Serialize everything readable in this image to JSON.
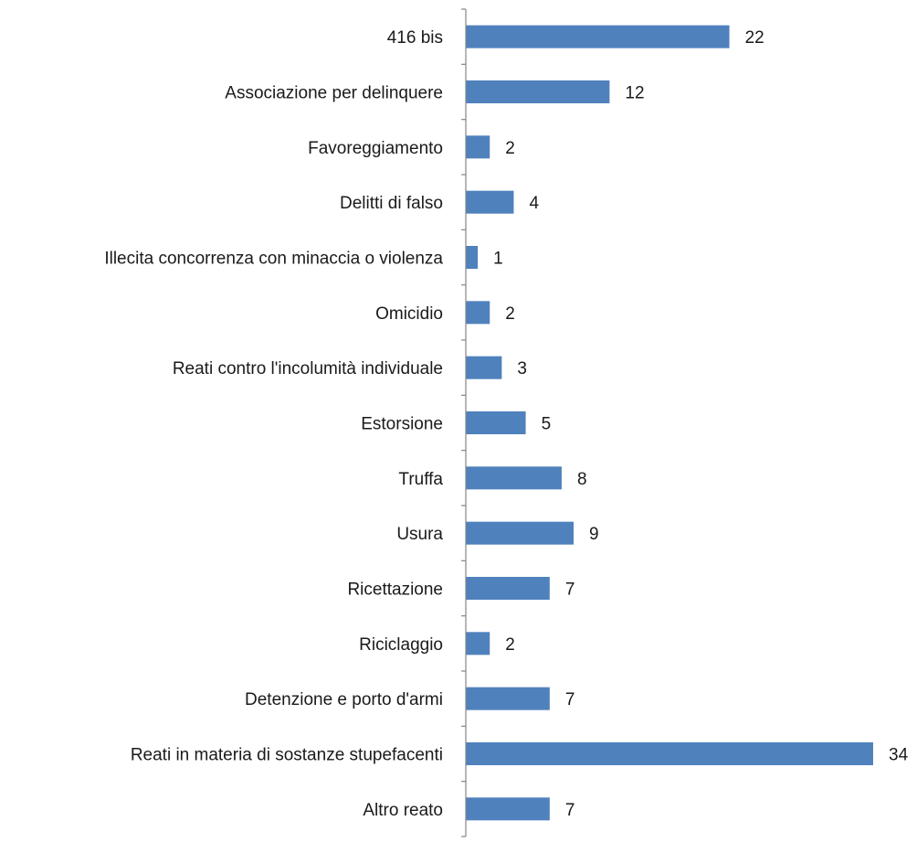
{
  "chart_data": {
    "type": "bar",
    "orientation": "horizontal",
    "categories": [
      "416 bis",
      "Associazione per delinquere",
      "Favoreggiamento",
      "Delitti di falso",
      "Illecita concorrenza con minaccia o violenza",
      "Omicidio",
      "Reati contro l'incolumità individuale",
      "Estorsione",
      "Truffa",
      "Usura",
      "Ricettazione",
      "Riciclaggio",
      "Detenzione e porto d'armi",
      "Reati in materia di sostanze stupefacenti",
      "Altro reato"
    ],
    "values": [
      22,
      12,
      2,
      4,
      1,
      2,
      3,
      5,
      8,
      9,
      7,
      2,
      7,
      34,
      7
    ],
    "xlim": [
      0,
      34
    ],
    "grid": false,
    "legend": "none",
    "bar_color": "#4f81bd",
    "axis_color": "#868686"
  }
}
